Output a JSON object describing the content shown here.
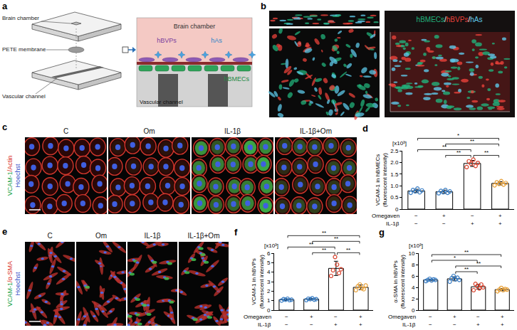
{
  "figure": {
    "a": {
      "panel": "a",
      "chip": {
        "brain_chamber": "Brain chamber",
        "membrane": "PETE membrane",
        "vascular_channel": "Vascular channel"
      },
      "section": {
        "brain_chamber": "Brain chamber",
        "pericytes": "hBVPs",
        "astrocytes": "hAs",
        "endothelial": "hBMECs",
        "vascular_channel": "Vascular channel"
      }
    },
    "b": {
      "panel": "b",
      "label": [
        {
          "text": "hBMECs",
          "color": "#22b07a"
        },
        {
          "text": "/",
          "color": "#ffffff"
        },
        {
          "text": "hBVPs",
          "color": "#e8413a"
        },
        {
          "text": "/",
          "color": "#ffffff"
        },
        {
          "text": "hAs",
          "color": "#5ec8e8"
        }
      ]
    },
    "c": {
      "panel": "c",
      "columns": [
        "C",
        "Om",
        "IL-1β",
        "IL-1β+Om"
      ],
      "row_label": [
        [
          {
            "text": "VCAM-1",
            "color": "#22a34a"
          },
          {
            "text": "/Actin",
            "color": "#d9342b"
          }
        ],
        [
          {
            "text": "Hoechst",
            "color": "#3552c8"
          }
        ]
      ]
    },
    "e": {
      "panel": "e",
      "columns": [
        "C",
        "Om",
        "IL-1β",
        "IL-1β+Om"
      ],
      "row_label": [
        [
          {
            "text": "VCAM-1",
            "color": "#22a34a"
          },
          {
            "text": "/α-SMA",
            "color": "#d9342b"
          }
        ],
        [
          {
            "text": "Hoechst",
            "color": "#3552c8"
          }
        ]
      ]
    }
  },
  "chart_data": [
    {
      "type": "bar",
      "panel": "d",
      "ylabel": [
        "VCAM-1 in hBMECs",
        "(fluorescent intensity)"
      ],
      "y_multiplier": "[x10³]",
      "categories": [
        null,
        null,
        null,
        null
      ],
      "tick_labels": "y",
      "values": [
        0.78,
        0.743,
        1.958,
        1.103
      ],
      "errors": [
        0.07,
        0.07,
        0.13,
        0.07
      ],
      "points": [
        [
          0.7,
          0.82,
          0.76,
          0.88,
          0.72,
          0.8
        ],
        [
          0.68,
          0.78,
          0.72,
          0.82,
          0.7,
          0.76
        ],
        [
          1.8,
          2.05,
          1.95,
          2.12,
          1.85,
          1.98
        ],
        [
          1.02,
          1.15,
          1.08,
          1.2,
          1.05,
          1.12
        ]
      ],
      "color": "#ffffff",
      "colors": [
        "#3b7ec4",
        "#3b7ec4",
        "#d9442f",
        "#e8a13a"
      ],
      "marker": "circle-open",
      "ylim": [
        0,
        2.5
      ],
      "yticks": [
        0,
        0.5,
        {
          "value": 1,
          "label": "1.0"
        },
        1.5,
        {
          "value": 2,
          "label": "2.0"
        },
        2.5
      ],
      "grid": false,
      "x_rows": [
        {
          "label": "Omegaven",
          "values": [
            "−",
            "+",
            "−",
            "+"
          ]
        },
        {
          "label": "IL-1β",
          "values": [
            "−",
            "−",
            "+",
            "+"
          ]
        }
      ],
      "significance": [
        {
          "from": 1,
          "to": 2,
          "label": "**"
        },
        {
          "from": 2,
          "to": 3,
          "label": "**"
        },
        {
          "from": 0,
          "to": 2,
          "label": "**"
        },
        {
          "from": 1,
          "to": 3,
          "label": "**"
        },
        {
          "from": 0,
          "to": 3,
          "label": "*"
        }
      ]
    },
    {
      "type": "bar",
      "panel": "f",
      "ylabel": [
        "VCAM-1 in hBVPs",
        "(fluorescent intensity)"
      ],
      "y_multiplier": "[x10³]",
      "categories": [
        null,
        null,
        null,
        null
      ],
      "tick_labels": "y",
      "values": [
        1.1,
        1.15,
        4.4,
        2.4
      ],
      "errors": [
        0.08,
        0.08,
        0.75,
        0.25
      ],
      "points": [
        [
          1.0,
          1.15,
          1.1,
          1.2,
          1.05,
          1.1
        ],
        [
          1.05,
          1.2,
          1.15,
          1.25,
          1.1,
          1.15
        ],
        [
          3.6,
          4.2,
          5.6,
          4.8,
          3.9,
          4.3
        ],
        [
          2.1,
          2.5,
          2.7,
          2.3,
          2.2,
          2.6
        ]
      ],
      "color": "#ffffff",
      "colors": [
        "#3b7ec4",
        "#3b7ec4",
        "#d9442f",
        "#e8a13a"
      ],
      "marker": "circle-open",
      "ylim": [
        0,
        6
      ],
      "yticks": [
        0,
        1,
        2,
        3,
        4,
        5,
        6
      ],
      "grid": false,
      "x_rows": [
        {
          "label": "Omegaven",
          "values": [
            "−",
            "+",
            "−",
            "+"
          ]
        },
        {
          "label": "IL-1β",
          "values": [
            "−",
            "−",
            "+",
            "+"
          ]
        }
      ],
      "significance": [
        {
          "from": 1,
          "to": 2,
          "label": "**"
        },
        {
          "from": 2,
          "to": 3,
          "label": "**"
        },
        {
          "from": 0,
          "to": 2,
          "label": "**"
        },
        {
          "from": 1,
          "to": 3,
          "label": "**"
        },
        {
          "from": 0,
          "to": 3,
          "label": "**"
        }
      ]
    },
    {
      "type": "bar",
      "panel": "g",
      "ylabel": [
        "α-SMA in hBVPs",
        "(fluorescent intensity)"
      ],
      "y_multiplier": "[x10³]",
      "categories": [
        null,
        null,
        null,
        null
      ],
      "tick_labels": "y",
      "values": [
        5.3,
        5.5,
        4.1,
        3.6
      ],
      "errors": [
        0.15,
        0.35,
        0.42,
        0.2
      ],
      "points": [
        [
          5.1,
          5.3,
          5.5,
          5.2,
          5.4,
          5.3
        ],
        [
          5.0,
          5.6,
          6.0,
          5.4,
          5.7,
          5.3
        ],
        [
          3.5,
          4.6,
          4.2,
          3.8,
          4.5,
          4.0
        ],
        [
          3.3,
          3.6,
          3.9,
          3.5,
          3.7,
          3.6
        ]
      ],
      "color": "#ffffff",
      "colors": [
        "#3b7ec4",
        "#3b7ec4",
        "#d9442f",
        "#e8a13a"
      ],
      "marker": "circle-open",
      "ylim": [
        0,
        10
      ],
      "yticks": [
        0,
        2,
        4,
        6,
        8,
        10
      ],
      "grid": false,
      "x_rows": [
        {
          "label": "Omegaven",
          "values": [
            "−",
            "+",
            "−",
            "+"
          ]
        },
        {
          "label": "IL-1β",
          "values": [
            "−",
            "−",
            "+",
            "+"
          ]
        }
      ],
      "significance": [
        {
          "from": 1,
          "to": 2,
          "label": "**"
        },
        {
          "from": 1,
          "to": 3,
          "label": "**"
        },
        {
          "from": 0,
          "to": 2,
          "label": "*"
        },
        {
          "from": 0,
          "to": 3,
          "label": "**"
        }
      ]
    }
  ]
}
